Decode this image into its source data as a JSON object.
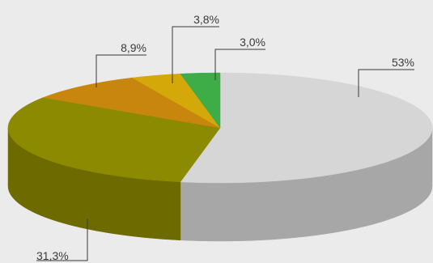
{
  "chart_data": {
    "type": "pie",
    "style": "3d",
    "start_angle_deg": -90,
    "direction": "clockwise",
    "slices": [
      {
        "label": "53%",
        "value": 53.0,
        "color": "#d6d6d6",
        "side_color": "#a7a7a7"
      },
      {
        "label": "31,3%",
        "value": 31.3,
        "color": "#8c8a00",
        "side_color": "#6d6a00"
      },
      {
        "label": "8,9%",
        "value": 8.9,
        "color": "#c8860f",
        "side_color": "#9b6607"
      },
      {
        "label": "3,8%",
        "value": 3.8,
        "color": "#d4a808",
        "side_color": "#a98606"
      },
      {
        "label": "3,0%",
        "value": 3.0,
        "color": "#3eac47",
        "side_color": "#2e8735"
      }
    ],
    "legend": "none",
    "grid": false
  }
}
